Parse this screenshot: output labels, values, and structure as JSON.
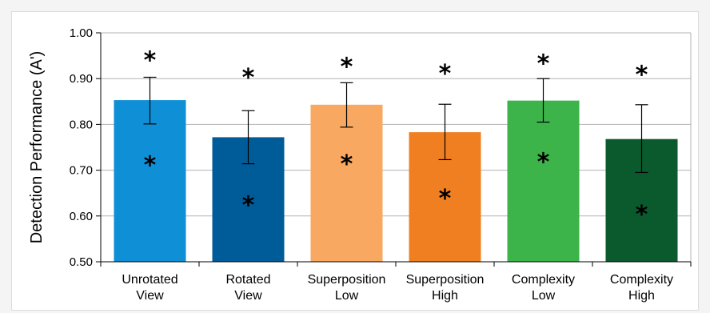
{
  "chart_data": {
    "type": "bar",
    "title": "",
    "xlabel": "",
    "ylabel": "Detection Performance (A')",
    "ylim": [
      0.5,
      1.0
    ],
    "yticks": [
      "0.50",
      "0.60",
      "0.70",
      "0.80",
      "0.90",
      "1.00"
    ],
    "grid": true,
    "legend": "none",
    "categories": [
      [
        "Unrotated",
        "View"
      ],
      [
        "Rotated",
        "View"
      ],
      [
        "Superposition",
        "Low"
      ],
      [
        "Superposition",
        "High"
      ],
      [
        "Complexity",
        "Low"
      ],
      [
        "Complexity",
        "High"
      ]
    ],
    "values": [
      0.853,
      0.772,
      0.843,
      0.783,
      0.852,
      0.768
    ],
    "error_low": [
      0.801,
      0.714,
      0.794,
      0.723,
      0.805,
      0.695
    ],
    "error_high": [
      0.903,
      0.83,
      0.891,
      0.844,
      0.9,
      0.843
    ],
    "colors": [
      "#0f8fd6",
      "#005b99",
      "#f8a860",
      "#f07f22",
      "#3cb44a",
      "#0b5a2d"
    ],
    "annotations": {
      "symbol": "*",
      "upper_star_values": [
        0.947,
        0.909,
        0.933,
        0.918,
        0.94,
        0.915
      ],
      "lower_star_values": [
        0.718,
        0.63,
        0.72,
        0.645,
        0.725,
        0.61
      ]
    }
  }
}
